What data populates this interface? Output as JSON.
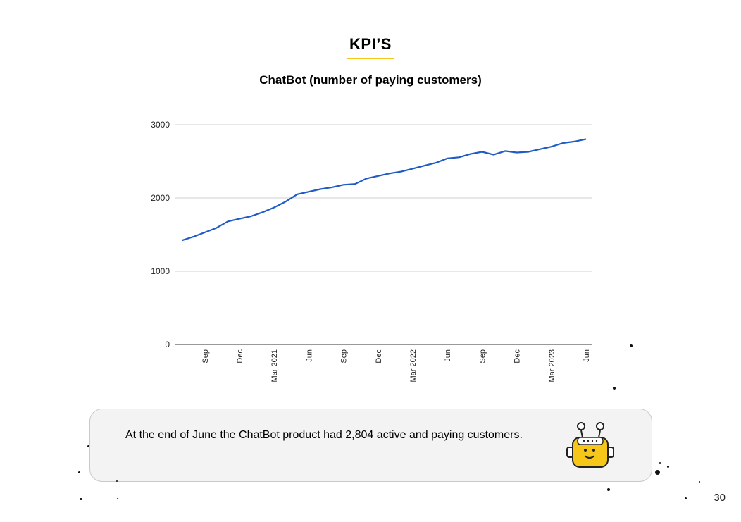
{
  "slide": {
    "title": "KPI’S",
    "page_number": "30",
    "accent_color": "#f6c619"
  },
  "chart_data": {
    "type": "line",
    "title": "ChatBot (number of paying customers)",
    "xlabel": "",
    "ylabel": "",
    "ylim": [
      0,
      3000
    ],
    "yticks": [
      0,
      1000,
      2000,
      3000
    ],
    "grid": true,
    "x_tick_labels": [
      "Sep",
      "Dec",
      "Mar 2021",
      "Jun",
      "Sep",
      "Dec",
      "Mar 2022",
      "Jun",
      "Sep",
      "Dec",
      "Mar 2023",
      "Jun"
    ],
    "x_start": "2020-07",
    "x_end": "2023-06",
    "series": [
      {
        "color": "#1f5bc6",
        "x": [
          "2020-07",
          "2020-08",
          "2020-09",
          "2020-10",
          "2020-11",
          "2020-12",
          "2021-01",
          "2021-02",
          "2021-03",
          "2021-04",
          "2021-05",
          "2021-06",
          "2021-07",
          "2021-08",
          "2021-09",
          "2021-10",
          "2021-11",
          "2021-12",
          "2022-01",
          "2022-02",
          "2022-03",
          "2022-04",
          "2022-05",
          "2022-06",
          "2022-07",
          "2022-08",
          "2022-09",
          "2022-10",
          "2022-11",
          "2022-12",
          "2023-01",
          "2023-02",
          "2023-03",
          "2023-04",
          "2023-05",
          "2023-06"
        ],
        "values": [
          1420,
          1470,
          1530,
          1590,
          1680,
          1715,
          1750,
          1805,
          1870,
          1950,
          2050,
          2085,
          2120,
          2145,
          2180,
          2190,
          2265,
          2300,
          2335,
          2360,
          2400,
          2440,
          2480,
          2540,
          2555,
          2600,
          2630,
          2590,
          2640,
          2620,
          2630,
          2665,
          2700,
          2750,
          2770,
          2804
        ]
      }
    ]
  },
  "callout": {
    "text": "At the end of June the ChatBot product had 2,804 active and paying customers.",
    "icon": "robot-icon",
    "background": "#f3f3f3"
  }
}
